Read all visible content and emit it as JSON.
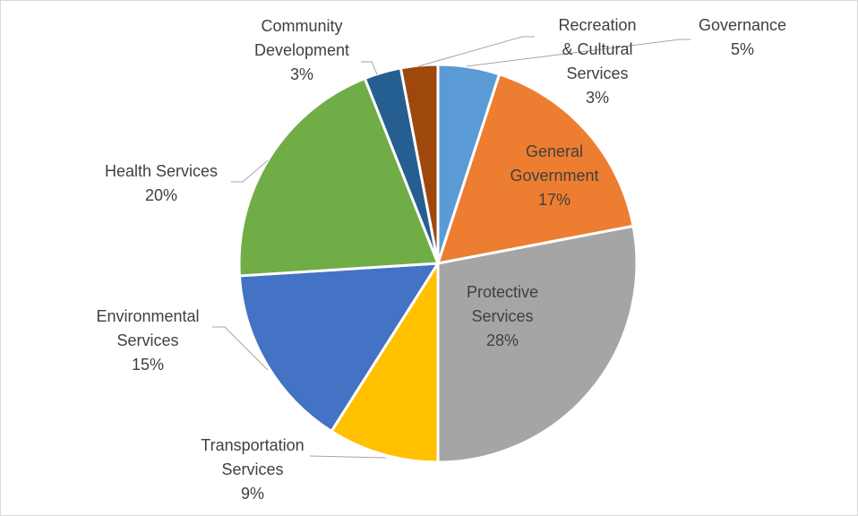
{
  "chart_data": {
    "type": "pie",
    "title": "",
    "start": "12 o'clock",
    "direction": "clockwise",
    "slices": [
      {
        "label_lines": [
          "Governance"
        ],
        "pct_text": "5%",
        "value": 5,
        "color": "#5b9bd5",
        "label_color": "#404040"
      },
      {
        "label_lines": [
          "General",
          "Government"
        ],
        "pct_text": "17%",
        "value": 17,
        "color": "#ed7d31",
        "label_color": "#404040"
      },
      {
        "label_lines": [
          "Protective",
          "Services"
        ],
        "pct_text": "28%",
        "value": 28,
        "color": "#a5a5a5",
        "label_color": "#404040"
      },
      {
        "label_lines": [
          "Transportation",
          "Services"
        ],
        "pct_text": "9%",
        "value": 9,
        "color": "#ffc000",
        "label_color": "#404040"
      },
      {
        "label_lines": [
          "Environmental",
          "Services"
        ],
        "pct_text": "15%",
        "value": 15,
        "color": "#4472c4",
        "label_color": "#404040"
      },
      {
        "label_lines": [
          "Health Services"
        ],
        "pct_text": "20%",
        "value": 20,
        "color": "#70ad47",
        "label_color": "#404040"
      },
      {
        "label_lines": [
          "Community",
          "Development"
        ],
        "pct_text": "3%",
        "value": 3,
        "color": "#255e91",
        "label_color": "#404040"
      },
      {
        "label_lines": [
          "Recreation",
          "& Cultural",
          "Services"
        ],
        "pct_text": "3%",
        "value": 3,
        "color": "#9e480e",
        "label_color": "#404040"
      }
    ]
  }
}
